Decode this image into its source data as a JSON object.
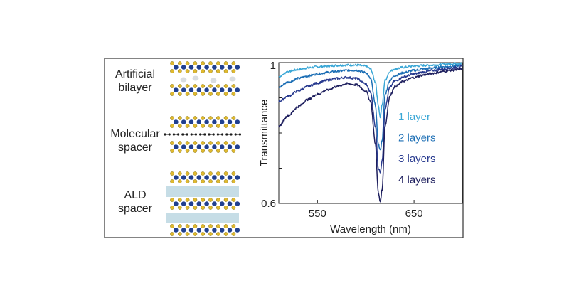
{
  "schematics": [
    {
      "label_lines": [
        "Artificial",
        "bilayer"
      ],
      "kind": "bilayer"
    },
    {
      "label_lines": [
        "Molecular",
        "spacer"
      ],
      "kind": "molecular"
    },
    {
      "label_lines": [
        "ALD",
        "spacer"
      ],
      "kind": "ald"
    }
  ],
  "colors": {
    "metal_atom": "#1f3f8f",
    "chalcogen_atom": "#e0b92e",
    "chalcogen_outline": "#8a7a20",
    "vacancy": "#d9dde0",
    "molecule": "#1a1a1a",
    "ald_layer": "#c6dde6",
    "frame": "#333333"
  },
  "chart_data": {
    "type": "line",
    "xlabel": "Wavelength (nm)",
    "ylabel": "Transmittance",
    "xlim": [
      510,
      700
    ],
    "ylim": [
      0.6,
      1.0
    ],
    "xticks": [
      550,
      650
    ],
    "yticks": [
      0.6,
      1.0
    ],
    "ytick_labels": [
      "0.6",
      "1"
    ],
    "legend_position": "right-center",
    "resonance_center_nm": 615,
    "series": [
      {
        "name": "1 layer",
        "color": "#3aa7d6",
        "x": [
          510,
          520,
          530,
          540,
          550,
          560,
          570,
          580,
          590,
          600,
          605,
          610,
          613,
          615,
          617,
          620,
          625,
          630,
          640,
          650,
          660,
          670,
          680,
          690,
          700
        ],
        "y": [
          0.96,
          0.975,
          0.98,
          0.985,
          0.988,
          0.99,
          0.992,
          0.993,
          0.993,
          0.99,
          0.982,
          0.945,
          0.88,
          0.845,
          0.88,
          0.95,
          0.975,
          0.982,
          0.987,
          0.99,
          0.992,
          0.993,
          0.995,
          0.997,
          0.998
        ]
      },
      {
        "name": "2 layers",
        "color": "#1d6fb5",
        "x": [
          510,
          520,
          530,
          540,
          550,
          560,
          570,
          580,
          590,
          600,
          605,
          610,
          613,
          615,
          617,
          620,
          625,
          630,
          640,
          650,
          660,
          670,
          680,
          690,
          700
        ],
        "y": [
          0.93,
          0.945,
          0.955,
          0.962,
          0.968,
          0.972,
          0.975,
          0.978,
          0.978,
          0.972,
          0.955,
          0.88,
          0.77,
          0.75,
          0.78,
          0.91,
          0.95,
          0.963,
          0.972,
          0.978,
          0.982,
          0.985,
          0.988,
          0.99,
          0.992
        ]
      },
      {
        "name": "3 layers",
        "color": "#283a8f",
        "x": [
          510,
          520,
          530,
          540,
          550,
          560,
          570,
          580,
          590,
          600,
          605,
          610,
          613,
          615,
          617,
          620,
          625,
          630,
          640,
          650,
          660,
          670,
          680,
          690,
          700
        ],
        "y": [
          0.89,
          0.905,
          0.92,
          0.932,
          0.942,
          0.95,
          0.955,
          0.958,
          0.955,
          0.94,
          0.915,
          0.82,
          0.7,
          0.69,
          0.72,
          0.87,
          0.93,
          0.948,
          0.96,
          0.968,
          0.973,
          0.978,
          0.982,
          0.985,
          0.988
        ]
      },
      {
        "name": "4 layers",
        "color": "#1e1f5e",
        "x": [
          510,
          520,
          530,
          540,
          550,
          560,
          570,
          580,
          590,
          600,
          605,
          610,
          613,
          615,
          617,
          620,
          625,
          630,
          640,
          650,
          660,
          670,
          680,
          690,
          700
        ],
        "y": [
          0.82,
          0.85,
          0.875,
          0.895,
          0.91,
          0.922,
          0.932,
          0.94,
          0.937,
          0.92,
          0.89,
          0.77,
          0.63,
          0.605,
          0.64,
          0.82,
          0.905,
          0.932,
          0.948,
          0.958,
          0.965,
          0.97,
          0.975,
          0.978,
          0.982
        ]
      }
    ]
  }
}
